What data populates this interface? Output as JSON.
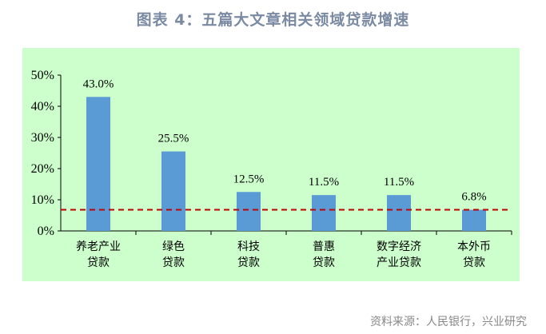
{
  "figure": {
    "title": "图表 4：五篇大文章相关领域贷款增速",
    "source": "资料来源：人民银行，兴业研究"
  },
  "colors": {
    "panel_background": "#ccffcc",
    "bar": "#5b9bd5",
    "reference_line": "#c00000",
    "title": "#7a8aa3"
  },
  "chart_data": {
    "type": "bar",
    "categories": [
      [
        "养老产业",
        "贷款"
      ],
      [
        "绿色",
        "贷款"
      ],
      [
        "科技",
        "贷款"
      ],
      [
        "普惠",
        "贷款"
      ],
      [
        "数字经济",
        "产业贷款"
      ],
      [
        "本外币",
        "贷款"
      ]
    ],
    "values": [
      43.0,
      25.5,
      12.5,
      11.5,
      11.5,
      6.8
    ],
    "data_labels": [
      "43.0%",
      "25.5%",
      "12.5%",
      "11.5%",
      "11.5%",
      "6.8%"
    ],
    "ylim": [
      0,
      50
    ],
    "yticks": [
      0,
      10,
      20,
      30,
      40,
      50
    ],
    "ytick_labels": [
      "0%",
      "10%",
      "20%",
      "30%",
      "40%",
      "50%"
    ],
    "reference_line": {
      "value": 6.8,
      "style": "dashed"
    },
    "grid": false,
    "legend": "none",
    "xlabel": "",
    "ylabel": ""
  }
}
